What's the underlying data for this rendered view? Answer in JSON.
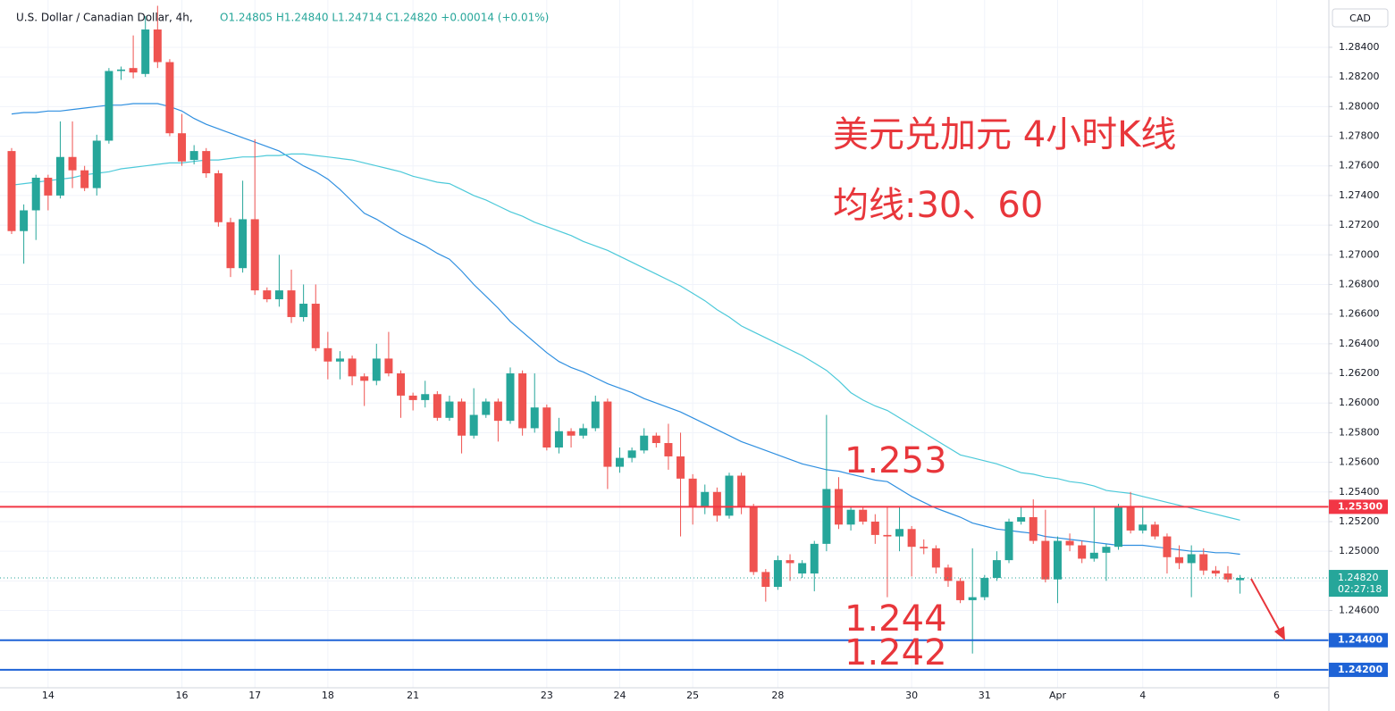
{
  "chart_data": {
    "type": "candlestick",
    "title": "U.S. Dollar / Canadian Dollar, 4h,",
    "ohlc_text": "O1.24805 H1.24840 L1.24714 C1.24820 +0.00014 (+0.01%)",
    "currency": "CAD",
    "annotations": [
      "美元兑加元 4小时K线",
      "均线:30、60",
      "1.253",
      "1.244",
      "1.242"
    ],
    "categories": [
      null,
      null,
      null,
      "14",
      null,
      null,
      null,
      null,
      null,
      null,
      null,
      null,
      null,
      null,
      "16",
      null,
      null,
      null,
      null,
      null,
      "17",
      null,
      null,
      null,
      null,
      null,
      "18",
      null,
      null,
      null,
      null,
      null,
      null,
      "21",
      null,
      null,
      null,
      null,
      null,
      null,
      null,
      null,
      null,
      null,
      "23",
      null,
      null,
      null,
      null,
      null,
      "24",
      null,
      null,
      null,
      null,
      null,
      "25",
      null,
      null,
      null,
      null,
      null,
      null,
      "28",
      null,
      null,
      null,
      null,
      null,
      null,
      null,
      null,
      null,
      null,
      "30",
      null,
      null,
      null,
      null,
      null,
      "31",
      null,
      null,
      null,
      null,
      null,
      "Apr",
      null,
      null,
      null,
      null,
      null,
      null,
      "4",
      null,
      null,
      null,
      null,
      null,
      null,
      null,
      null,
      null,
      null,
      "6"
    ],
    "open": [
      1.277,
      1.2716,
      1.273,
      1.2752,
      1.274,
      1.2766,
      1.2757,
      1.2745,
      1.2777,
      1.2824,
      1.2826,
      1.2822,
      1.2852,
      1.283,
      1.2782,
      1.2764,
      1.277,
      1.2755,
      1.2722,
      1.2691,
      1.2724,
      1.2676,
      1.267,
      1.2676,
      1.2658,
      1.2667,
      1.2637,
      1.2628,
      1.263,
      1.2618,
      1.2615,
      1.263,
      1.262,
      1.2605,
      1.2602,
      1.2606,
      1.259,
      1.2601,
      1.2578,
      1.2592,
      1.2601,
      1.2588,
      1.262,
      1.2583,
      1.2597,
      1.257,
      1.2581,
      1.2578,
      1.2583,
      1.2601,
      1.2557,
      1.2563,
      1.2568,
      1.2578,
      1.2573,
      1.2564,
      1.2549,
      1.253,
      1.254,
      1.2524,
      1.2551,
      1.253,
      1.2486,
      1.2476,
      1.2494,
      1.2485,
      1.2485,
      1.2505,
      1.2542,
      1.2518,
      1.2528,
      1.252,
      1.2511,
      1.251,
      1.2515,
      1.2503,
      1.2502,
      1.2489,
      1.248,
      1.2467,
      1.2469,
      1.2482,
      1.2494,
      1.252,
      1.2523,
      1.2507,
      1.2481,
      1.2507,
      1.2504,
      1.2495,
      1.2499,
      1.2503,
      1.253,
      1.2514,
      1.2518,
      1.251,
      1.2496,
      1.2492,
      1.2498,
      1.2487,
      1.2485,
      1.24805,
      null,
      null,
      null
    ],
    "high": [
      1.2772,
      1.2734,
      1.2754,
      1.2754,
      1.279,
      1.279,
      1.276,
      1.2781,
      1.2826,
      1.2827,
      1.2848,
      1.2861,
      1.2868,
      1.2832,
      1.2795,
      1.2774,
      1.2772,
      1.2757,
      1.2725,
      1.275,
      1.2778,
      1.2678,
      1.27,
      1.269,
      1.268,
      1.268,
      1.2648,
      1.2635,
      1.2632,
      1.262,
      1.264,
      1.2648,
      1.2622,
      1.2607,
      1.2615,
      1.2608,
      1.2605,
      1.2603,
      1.261,
      1.2603,
      1.2603,
      1.2624,
      1.2622,
      1.262,
      1.2599,
      1.259,
      1.2583,
      1.2586,
      1.2605,
      1.2603,
      1.257,
      1.257,
      1.2583,
      1.258,
      1.2586,
      1.258,
      1.2552,
      1.2545,
      1.2543,
      1.2553,
      1.2553,
      1.2532,
      1.2488,
      1.2497,
      1.2498,
      1.2494,
      1.2507,
      1.2592,
      1.255,
      1.253,
      1.253,
      1.2525,
      1.253,
      1.253,
      1.2517,
      1.2508,
      1.2504,
      1.2491,
      1.2482,
      1.2502,
      1.2484,
      1.25,
      1.2522,
      1.253,
      1.2535,
      1.2528,
      1.251,
      1.2512,
      1.2507,
      1.253,
      1.2505,
      1.2532,
      1.254,
      1.253,
      1.252,
      1.2512,
      1.2504,
      1.2504,
      1.2502,
      1.249,
      1.249,
      1.2484,
      null,
      null,
      null
    ],
    "low": [
      1.2714,
      1.2694,
      1.271,
      1.273,
      1.2738,
      1.2745,
      1.2743,
      1.274,
      1.2775,
      1.2818,
      1.2819,
      1.282,
      1.2826,
      1.278,
      1.276,
      1.2761,
      1.2752,
      1.2719,
      1.2685,
      1.2688,
      1.2673,
      1.2668,
      1.2665,
      1.2654,
      1.2655,
      1.2635,
      1.2616,
      1.2616,
      1.2612,
      1.2598,
      1.2612,
      1.2618,
      1.259,
      1.2595,
      1.2597,
      1.2588,
      1.2588,
      1.2566,
      1.2576,
      1.259,
      1.2574,
      1.2586,
      1.2578,
      1.258,
      1.2568,
      1.2566,
      1.257,
      1.2576,
      1.2581,
      1.2542,
      1.2553,
      1.256,
      1.2566,
      1.257,
      1.2555,
      1.251,
      1.2518,
      1.2525,
      1.252,
      1.2522,
      1.2525,
      1.2484,
      1.2466,
      1.2474,
      1.248,
      1.2482,
      1.2473,
      1.25,
      1.2515,
      1.2514,
      1.2518,
      1.2505,
      1.2469,
      1.25,
      1.2483,
      1.2498,
      1.2485,
      1.2476,
      1.2465,
      1.2431,
      1.2467,
      1.248,
      1.2492,
      1.2518,
      1.2505,
      1.2479,
      1.2465,
      1.25,
      1.2492,
      1.2493,
      1.248,
      1.2501,
      1.2512,
      1.2512,
      1.2508,
      1.2485,
      1.2488,
      1.2469,
      1.2484,
      1.2483,
      1.2479,
      1.24714,
      null,
      null,
      null
    ],
    "close": [
      1.2716,
      1.273,
      1.2752,
      1.274,
      1.2766,
      1.2757,
      1.2745,
      1.2777,
      1.2824,
      1.2825,
      1.2823,
      1.2852,
      1.283,
      1.2782,
      1.2763,
      1.277,
      1.2755,
      1.2722,
      1.2691,
      1.2724,
      1.2676,
      1.267,
      1.2676,
      1.2658,
      1.2667,
      1.2637,
      1.2628,
      1.263,
      1.2618,
      1.2615,
      1.263,
      1.262,
      1.2605,
      1.2602,
      1.2606,
      1.259,
      1.2601,
      1.2578,
      1.2592,
      1.2601,
      1.2588,
      1.262,
      1.2583,
      1.2597,
      1.257,
      1.2581,
      1.2578,
      1.2583,
      1.2601,
      1.2557,
      1.2563,
      1.2568,
      1.2578,
      1.2573,
      1.2564,
      1.2549,
      1.253,
      1.254,
      1.2524,
      1.2551,
      1.253,
      1.2486,
      1.2476,
      1.2494,
      1.2492,
      1.2492,
      1.2505,
      1.2542,
      1.2518,
      1.2528,
      1.252,
      1.2511,
      1.251,
      1.2515,
      1.2503,
      1.2502,
      1.2489,
      1.248,
      1.2467,
      1.2469,
      1.2482,
      1.2494,
      1.252,
      1.2523,
      1.2507,
      1.2481,
      1.2507,
      1.2504,
      1.2495,
      1.2499,
      1.2503,
      1.253,
      1.2514,
      1.2518,
      1.251,
      1.2496,
      1.2492,
      1.2498,
      1.2487,
      1.2485,
      1.2481,
      1.2482,
      null,
      null,
      null
    ],
    "up_color": "#26a69a",
    "down_color": "#ef5350",
    "moving_averages": [
      {
        "color": "#2f8fe0",
        "values": [
          1.2795,
          1.2796,
          1.2796,
          1.2797,
          1.2797,
          1.2798,
          1.2799,
          1.28,
          1.2801,
          1.2801,
          1.2802,
          1.2802,
          1.2802,
          1.28,
          1.2797,
          1.2792,
          1.2788,
          1.2785,
          1.2782,
          1.2779,
          1.2776,
          1.2773,
          1.277,
          1.2765,
          1.276,
          1.2756,
          1.2751,
          1.2744,
          1.2736,
          1.2728,
          1.2724,
          1.2719,
          1.2714,
          1.271,
          1.2706,
          1.2701,
          1.2697,
          1.2689,
          1.268,
          1.2672,
          1.2664,
          1.2655,
          1.2648,
          1.2641,
          1.2634,
          1.2628,
          1.2624,
          1.2621,
          1.2617,
          1.2613,
          1.261,
          1.2607,
          1.2603,
          1.26,
          1.2597,
          1.2594,
          1.259,
          1.2586,
          1.2582,
          1.2578,
          1.2574,
          1.2571,
          1.2568,
          1.2565,
          1.2562,
          1.2559,
          1.2557,
          1.2555,
          1.2554,
          1.2552,
          1.255,
          1.2548,
          1.2547,
          1.2542,
          1.2537,
          1.2533,
          1.2529,
          1.2526,
          1.2523,
          1.2519,
          1.2517,
          1.2515,
          1.2514,
          1.2513,
          1.2512,
          1.251,
          1.2509,
          1.2508,
          1.2507,
          1.2506,
          1.2505,
          1.2504,
          1.2504,
          1.2504,
          1.2503,
          1.2502,
          1.2501,
          1.25,
          1.25,
          1.2499,
          1.2499,
          1.2498,
          null,
          null,
          null
        ]
      },
      {
        "color": "#4cc9d9",
        "values": [
          1.2747,
          1.2748,
          1.2749,
          1.275,
          1.2751,
          1.2752,
          1.2754,
          1.2755,
          1.2756,
          1.2758,
          1.2759,
          1.276,
          1.2761,
          1.2762,
          1.2762,
          1.2763,
          1.2764,
          1.2764,
          1.2765,
          1.2766,
          1.2766,
          1.2767,
          1.2767,
          1.2768,
          1.2768,
          1.2767,
          1.2766,
          1.2765,
          1.2764,
          1.2762,
          1.276,
          1.2758,
          1.2756,
          1.2753,
          1.2751,
          1.2749,
          1.2748,
          1.2744,
          1.274,
          1.2737,
          1.2733,
          1.2729,
          1.2726,
          1.2722,
          1.2719,
          1.2716,
          1.2713,
          1.2709,
          1.2706,
          1.2703,
          1.2699,
          1.2695,
          1.2691,
          1.2687,
          1.2683,
          1.2679,
          1.2674,
          1.2669,
          1.2663,
          1.2658,
          1.2652,
          1.2648,
          1.2644,
          1.264,
          1.2636,
          1.2632,
          1.2627,
          1.2622,
          1.2615,
          1.2607,
          1.2602,
          1.2598,
          1.2595,
          1.259,
          1.2585,
          1.258,
          1.2575,
          1.257,
          1.2565,
          1.2563,
          1.2561,
          1.2559,
          1.2556,
          1.2553,
          1.2552,
          1.255,
          1.2549,
          1.2547,
          1.2546,
          1.2544,
          1.2541,
          1.254,
          1.2539,
          1.2537,
          1.2535,
          1.2533,
          1.2531,
          1.2529,
          1.2527,
          1.2525,
          1.2523,
          1.2521,
          null,
          null,
          null
        ]
      }
    ],
    "levels": [
      {
        "value": 1.253,
        "label": "1.25300",
        "color": "#f23645"
      },
      {
        "value": 1.244,
        "label": "1.24400",
        "color": "#1e63d6"
      },
      {
        "value": 1.242,
        "label": "1.24200",
        "color": "#1e63d6"
      }
    ],
    "last_price": {
      "value": 1.2482,
      "label": "1.24820",
      "countdown": "02:27:18",
      "color": "#26a69a"
    },
    "ylim": [
      1.24079,
      1.28719
    ],
    "yticks": [
      {
        "value": 1.242,
        "label": "1.24200"
      },
      {
        "value": 1.244,
        "label": "1.24400"
      },
      {
        "value": 1.246,
        "label": "1.24600"
      },
      {
        "value": 1.248,
        "label": "1.24800"
      },
      {
        "value": 1.25,
        "label": "1.25000"
      },
      {
        "value": 1.252,
        "label": "1.25200"
      },
      {
        "value": 1.254,
        "label": "1.25400"
      },
      {
        "value": 1.256,
        "label": "1.25600"
      },
      {
        "value": 1.258,
        "label": "1.25800"
      },
      {
        "value": 1.26,
        "label": "1.26000"
      },
      {
        "value": 1.262,
        "label": "1.26200"
      },
      {
        "value": 1.264,
        "label": "1.26400"
      },
      {
        "value": 1.266,
        "label": "1.26600"
      },
      {
        "value": 1.268,
        "label": "1.26800"
      },
      {
        "value": 1.27,
        "label": "1.27000"
      },
      {
        "value": 1.272,
        "label": "1.27200"
      },
      {
        "value": 1.274,
        "label": "1.27400"
      },
      {
        "value": 1.276,
        "label": "1.27600"
      },
      {
        "value": 1.278,
        "label": "1.27800"
      },
      {
        "value": 1.28,
        "label": "1.28000"
      },
      {
        "value": 1.282,
        "label": "1.28200"
      },
      {
        "value": 1.284,
        "label": "1.28400"
      }
    ],
    "grid": true
  }
}
